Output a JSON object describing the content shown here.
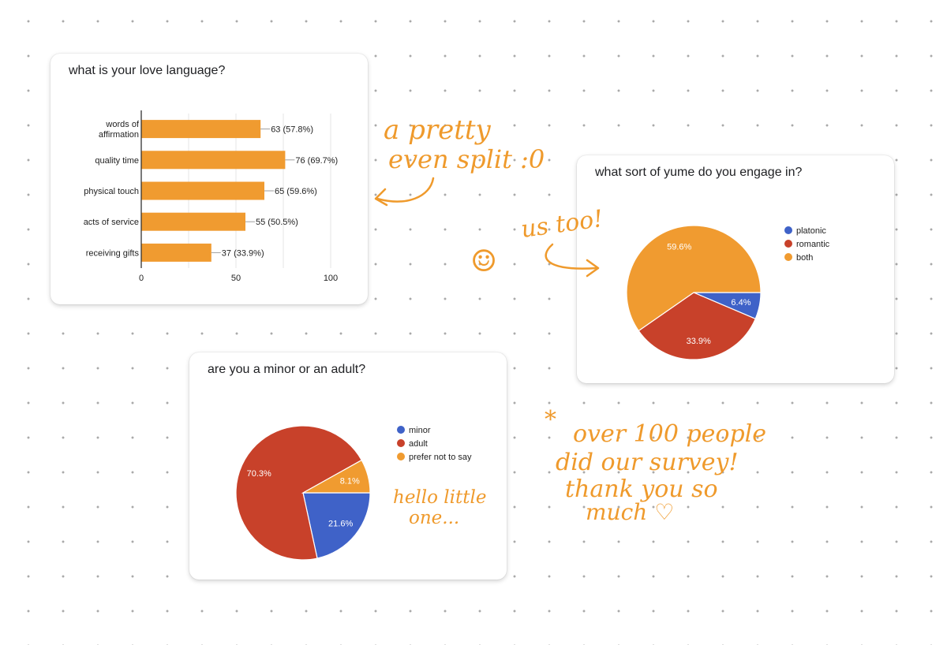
{
  "colors": {
    "bar": "#f09b30",
    "blue": "#3f62c8",
    "red": "#c8412a",
    "orange": "#f09b30",
    "ink": "#ef9a2c"
  },
  "chart_data": [
    {
      "type": "bar",
      "orientation": "horizontal",
      "title": "what is your love language?",
      "categories": [
        "words of affirmation",
        "quality time",
        "physical touch",
        "acts of service",
        "receiving gifts"
      ],
      "category_lines": [
        [
          "words of",
          "affirmation"
        ],
        [
          "quality time"
        ],
        [
          "physical touch"
        ],
        [
          "acts of service"
        ],
        [
          "receiving gifts"
        ]
      ],
      "values": [
        63,
        76,
        65,
        55,
        37
      ],
      "data_labels": [
        "63 (57.8%)",
        "76 (69.7%)",
        "65 (59.6%)",
        "55 (50.5%)",
        "37 (33.9%)"
      ],
      "xlim": [
        0,
        100
      ],
      "xticks": [
        "0",
        "50",
        "100"
      ],
      "grid": true
    },
    {
      "type": "pie",
      "title": "what sort of yume do you engage in?",
      "labels": [
        "platonic",
        "romantic",
        "both"
      ],
      "values": [
        6.4,
        33.9,
        59.6
      ],
      "data_labels": [
        "6.4%",
        "33.9%",
        "59.6%"
      ],
      "colors": [
        "#3f62c8",
        "#c8412a",
        "#f09b30"
      ],
      "legend": "right"
    },
    {
      "type": "pie",
      "title": "are you a minor or an adult?",
      "labels": [
        "minor",
        "adult",
        "prefer not to say"
      ],
      "values": [
        21.6,
        70.3,
        8.1
      ],
      "data_labels": [
        "21.6%",
        "70.3%",
        "8.1%"
      ],
      "colors": [
        "#3f62c8",
        "#c8412a",
        "#f09b30"
      ],
      "legend": "right"
    }
  ],
  "notes": {
    "split_line1": "a pretty",
    "split_line2": "even split :0",
    "us_too": "us too!",
    "smiley": "☺",
    "little_line1": "hello little",
    "little_line2": "one...",
    "asterisk": "*",
    "survey_line1": "over 100 people",
    "survey_line2": "did our survey!",
    "survey_line3": "thank you so",
    "survey_line4": "much ♡"
  }
}
